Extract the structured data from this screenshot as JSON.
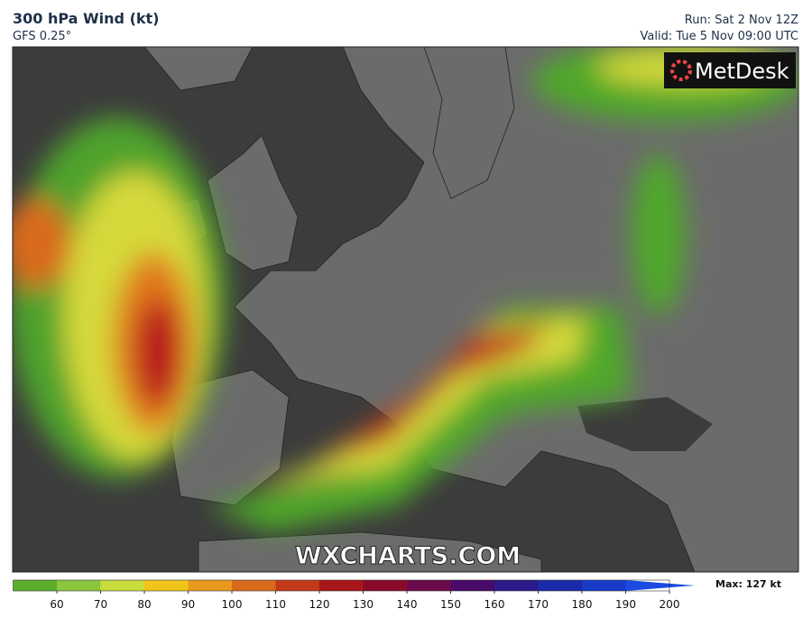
{
  "header": {
    "title": "300 hPa Wind (kt)",
    "subtitle": "GFS 0.25°",
    "run": "Run: Sat 2 Nov 12Z",
    "valid": "Valid: Tue 5 Nov 09:00 UTC"
  },
  "logo": "MetDesk",
  "watermark": "WXCHARTS.COM",
  "colorbar": {
    "ticks": [
      60,
      70,
      80,
      90,
      100,
      110,
      120,
      130,
      140,
      150,
      160,
      170,
      180,
      190,
      200
    ],
    "colors": [
      "#5cae2a",
      "#8cc63f",
      "#c8dc3c",
      "#f0c419",
      "#e89a1e",
      "#d86a1c",
      "#c23a1a",
      "#a8161a",
      "#8a0a2a",
      "#6a0a4a",
      "#4a0a6a",
      "#2a1a8a",
      "#1a2aaa",
      "#1a3ac8",
      "#1a4ae0"
    ],
    "max_label": "Max: 127 kt"
  }
}
